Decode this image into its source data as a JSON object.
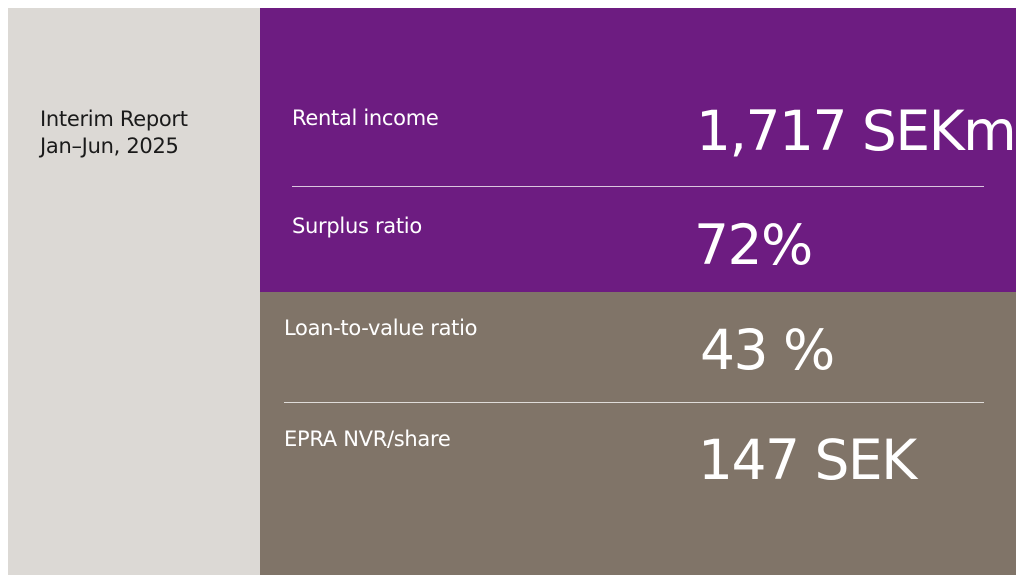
{
  "report": {
    "line1": "Interim Report",
    "line2": "Jan–Jun, 2025"
  },
  "metrics": [
    {
      "label": "Rental income",
      "value": "1,717 SEKm"
    },
    {
      "label": "Surplus ratio",
      "value": "72%"
    },
    {
      "label": "Loan-to-value ratio",
      "value": "43 %"
    },
    {
      "label": "EPRA NVR/share",
      "value": "147 SEK"
    }
  ],
  "colors": {
    "left_panel": "#dcd9d5",
    "top_panel": "#6d1c81",
    "bottom_panel": "#807468",
    "text_light": "#ffffff",
    "text_dark": "#1a1a1a"
  }
}
